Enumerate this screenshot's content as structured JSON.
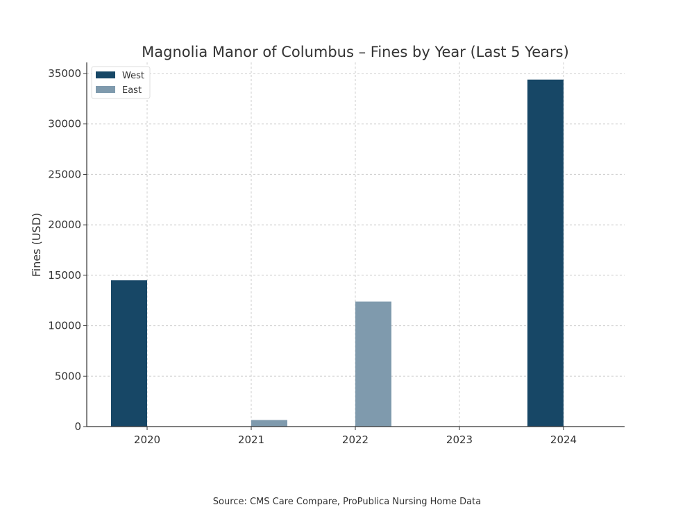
{
  "chart_data": {
    "type": "bar",
    "title": "Magnolia Manor of Columbus – Fines by Year (Last 5 Years)",
    "xlabel": "",
    "ylabel": "Fines (USD)",
    "categories": [
      "2020",
      "2021",
      "2022",
      "2023",
      "2024"
    ],
    "series": [
      {
        "name": "West",
        "color": "#174766",
        "values": [
          14500,
          0,
          0,
          0,
          34400
        ]
      },
      {
        "name": "East",
        "color": "#7f9aad",
        "values": [
          0,
          650,
          12400,
          0,
          0
        ]
      }
    ],
    "ylim": [
      0,
      35000
    ],
    "yticks": [
      "0",
      "5000",
      "10000",
      "15000",
      "20000",
      "25000",
      "30000",
      "35000"
    ],
    "grid": true,
    "legend_position": "top-left",
    "source": "Source: CMS Care Compare, ProPublica Nursing Home Data"
  }
}
